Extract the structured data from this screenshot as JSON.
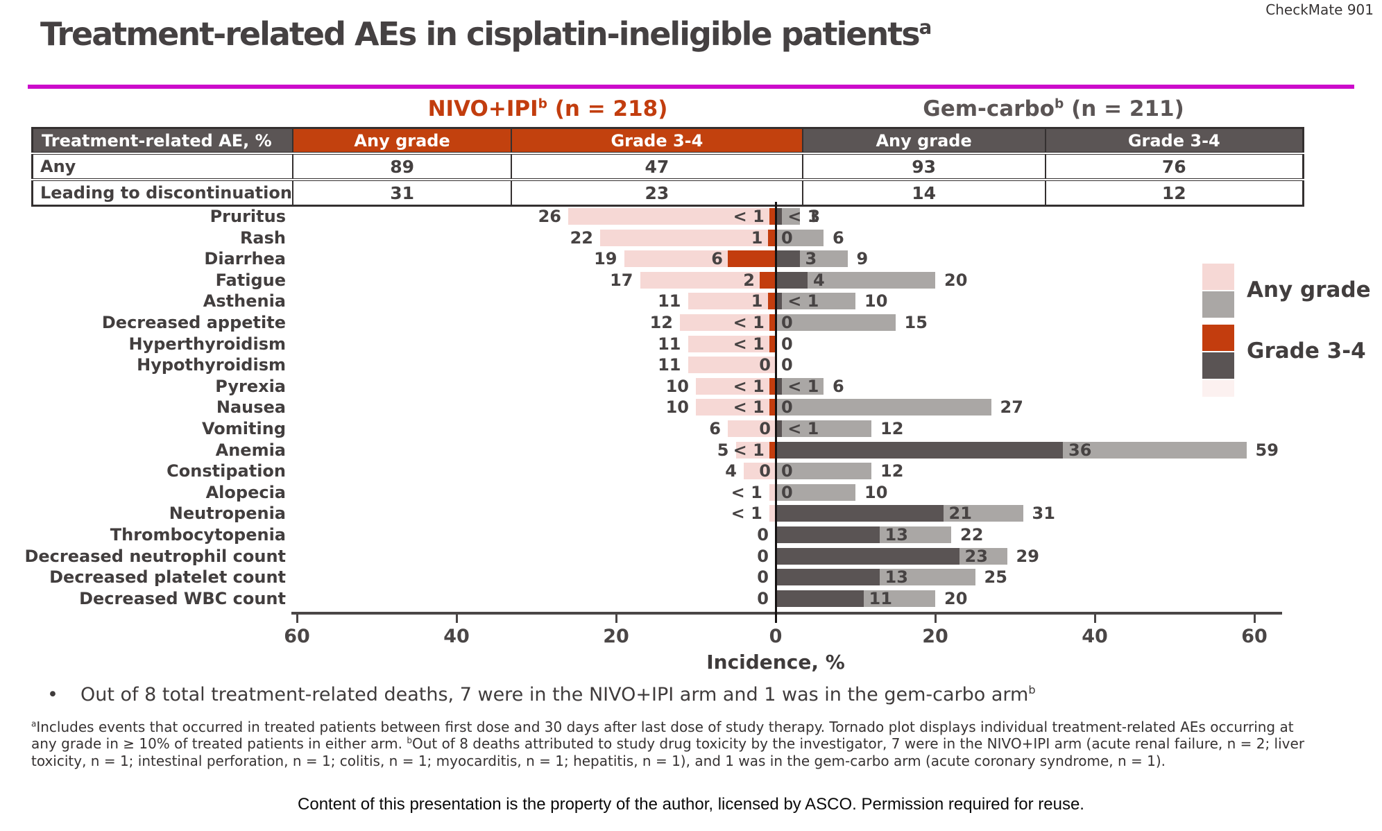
{
  "study_tag": "CheckMate 901",
  "title": {
    "text": "Treatment-related AEs in cisplatin-ineligible patients",
    "sup": "a"
  },
  "arms": {
    "nivo": {
      "name": "NIVO+IPI",
      "sup": "b",
      "n": " (n = 218)"
    },
    "gem": {
      "name": "Gem-carbo",
      "sup": "b",
      "n": " (n = 211)"
    }
  },
  "summary_table": {
    "corner_header": "Treatment-related AE, %",
    "columns": [
      "Any grade",
      "Grade 3-4",
      "Any grade",
      "Grade 3-4"
    ],
    "rows": [
      {
        "label": "Any",
        "values": [
          "89",
          "47",
          "93",
          "76"
        ]
      },
      {
        "label": "Leading to discontinuation",
        "values": [
          "31",
          "23",
          "14",
          "12"
        ]
      }
    ]
  },
  "legend": {
    "any_label": "Any grade",
    "g34_label": "Grade 3-4"
  },
  "colors": {
    "nivo_any": "#f6d8d5",
    "nivo_g34": "#c33d0e",
    "gem_any": "#aaa7a5",
    "gem_g34": "#5a5454",
    "magenta_rule": "#cc0bcb",
    "orange_header": "#c2410e",
    "dark_header": "#5b5555"
  },
  "chart_data": {
    "type": "bar",
    "subtype": "tornado",
    "title": "Treatment-related AEs occurring at any grade in ≥ 10% of treated patients in either arm",
    "xlabel": "Incidence, %",
    "axis_ticks": [
      "60",
      "40",
      "20",
      "0",
      "20",
      "40",
      "60"
    ],
    "x_range_per_side": 60,
    "left_arm": "NIVO+IPI",
    "right_arm": "Gem-carbo",
    "legend_entries": [
      "Any grade",
      "Grade 3-4"
    ],
    "rows": [
      {
        "label": "Pruritus",
        "nivo_any": 26,
        "nivo_any_label": "26",
        "nivo_g34": 0.8,
        "nivo_g34_label": "< 1",
        "gem_g34": 0.8,
        "gem_g34_label": "< 1",
        "gem_any": 3,
        "gem_any_label": "3"
      },
      {
        "label": "Rash",
        "nivo_any": 22,
        "nivo_any_label": "22",
        "nivo_g34": 1,
        "nivo_g34_label": "1",
        "gem_g34": 0,
        "gem_g34_label": "0",
        "gem_any": 6,
        "gem_any_label": "6"
      },
      {
        "label": "Diarrhea",
        "nivo_any": 19,
        "nivo_any_label": "19",
        "nivo_g34": 6,
        "nivo_g34_label": "6",
        "gem_g34": 3,
        "gem_g34_label": "3",
        "gem_any": 9,
        "gem_any_label": "9"
      },
      {
        "label": "Fatigue",
        "nivo_any": 17,
        "nivo_any_label": "17",
        "nivo_g34": 2,
        "nivo_g34_label": "2",
        "gem_g34": 4,
        "gem_g34_label": "4",
        "gem_any": 20,
        "gem_any_label": "20"
      },
      {
        "label": "Asthenia",
        "nivo_any": 11,
        "nivo_any_label": "11",
        "nivo_g34": 1,
        "nivo_g34_label": "1",
        "gem_g34": 0.8,
        "gem_g34_label": "< 1",
        "gem_any": 10,
        "gem_any_label": "10"
      },
      {
        "label": "Decreased appetite",
        "nivo_any": 12,
        "nivo_any_label": "12",
        "nivo_g34": 0.8,
        "nivo_g34_label": "< 1",
        "gem_g34": 0,
        "gem_g34_label": "0",
        "gem_any": 15,
        "gem_any_label": "15"
      },
      {
        "label": "Hyperthyroidism",
        "nivo_any": 11,
        "nivo_any_label": "11",
        "nivo_g34": 0.8,
        "nivo_g34_label": "< 1",
        "gem_g34": 0,
        "gem_g34_label": "0",
        "gem_any": 0,
        "gem_any_label": null
      },
      {
        "label": "Hypothyroidism",
        "nivo_any": 11,
        "nivo_any_label": "11",
        "nivo_g34": 0,
        "nivo_g34_label": "0",
        "gem_g34": 0,
        "gem_g34_label": "0",
        "gem_any": 0,
        "gem_any_label": null
      },
      {
        "label": "Pyrexia",
        "nivo_any": 10,
        "nivo_any_label": "10",
        "nivo_g34": 0.8,
        "nivo_g34_label": "< 1",
        "gem_g34": 0.8,
        "gem_g34_label": "< 1",
        "gem_any": 6,
        "gem_any_label": "6"
      },
      {
        "label": "Nausea",
        "nivo_any": 10,
        "nivo_any_label": "10",
        "nivo_g34": 0.8,
        "nivo_g34_label": "< 1",
        "gem_g34": 0,
        "gem_g34_label": "0",
        "gem_any": 27,
        "gem_any_label": "27"
      },
      {
        "label": "Vomiting",
        "nivo_any": 6,
        "nivo_any_label": "6",
        "nivo_g34": 0,
        "nivo_g34_label": "0",
        "gem_g34": 0.8,
        "gem_g34_label": "< 1",
        "gem_any": 12,
        "gem_any_label": "12"
      },
      {
        "label": "Anemia",
        "nivo_any": 5,
        "nivo_any_label": "5",
        "nivo_g34": 0.8,
        "nivo_g34_label": "< 1",
        "gem_g34": 36,
        "gem_g34_label": "36",
        "gem_any": 59,
        "gem_any_label": "59"
      },
      {
        "label": "Constipation",
        "nivo_any": 4,
        "nivo_any_label": "4",
        "nivo_g34": 0,
        "nivo_g34_label": "0",
        "gem_g34": 0,
        "gem_g34_label": "0",
        "gem_any": 12,
        "gem_any_label": "12"
      },
      {
        "label": "Alopecia",
        "nivo_any": 0.8,
        "nivo_any_label": "< 1",
        "nivo_g34": 0,
        "nivo_g34_label": null,
        "gem_g34": 0,
        "gem_g34_label": "0",
        "gem_any": 10,
        "gem_any_label": "10"
      },
      {
        "label": "Neutropenia",
        "nivo_any": 0.8,
        "nivo_any_label": "< 1",
        "nivo_g34": 0,
        "nivo_g34_label": null,
        "gem_g34": 21,
        "gem_g34_label": "21",
        "gem_any": 31,
        "gem_any_label": "31"
      },
      {
        "label": "Thrombocytopenia",
        "nivo_any": 0,
        "nivo_any_label": "0",
        "nivo_g34": 0,
        "nivo_g34_label": null,
        "gem_g34": 13,
        "gem_g34_label": "13",
        "gem_any": 22,
        "gem_any_label": "22"
      },
      {
        "label": "Decreased neutrophil count",
        "nivo_any": 0,
        "nivo_any_label": "0",
        "nivo_g34": 0,
        "nivo_g34_label": null,
        "gem_g34": 23,
        "gem_g34_label": "23",
        "gem_any": 29,
        "gem_any_label": "29"
      },
      {
        "label": "Decreased platelet count",
        "nivo_any": 0,
        "nivo_any_label": "0",
        "nivo_g34": 0,
        "nivo_g34_label": null,
        "gem_g34": 13,
        "gem_g34_label": "13",
        "gem_any": 25,
        "gem_any_label": "25"
      },
      {
        "label": "Decreased WBC count",
        "nivo_any": 0,
        "nivo_any_label": "0",
        "nivo_g34": 0,
        "nivo_g34_label": null,
        "gem_g34": 11,
        "gem_g34_label": "11",
        "gem_any": 20,
        "gem_any_label": "20"
      }
    ]
  },
  "bullet": {
    "text": "Out of 8 total treatment-related deaths, 7 were in the NIVO+IPI arm and 1 was in the gem-carbo arm",
    "sup": "b"
  },
  "footnote": {
    "sup_a": "a",
    "text_a": "Includes events that occurred in treated patients between first dose and 30 days after last dose of study therapy. Tornado plot displays individual treatment-related AEs occurring at any grade in ≥ 10% of treated patients in either arm. ",
    "sup_b": "b",
    "text_b": "Out of 8 deaths attributed to study drug toxicity by the investigator, 7 were in the NIVO+IPI arm (acute renal failure, n = 2; liver toxicity, n = 1; intestinal perforation, n = 1; colitis, n = 1; myocarditis, n = 1; hepatitis, n = 1), and 1 was in the gem-carbo arm (acute coronary syndrome, n = 1)."
  },
  "footer": "Content of this presentation is the property of the author, licensed by ASCO. Permission required for reuse."
}
